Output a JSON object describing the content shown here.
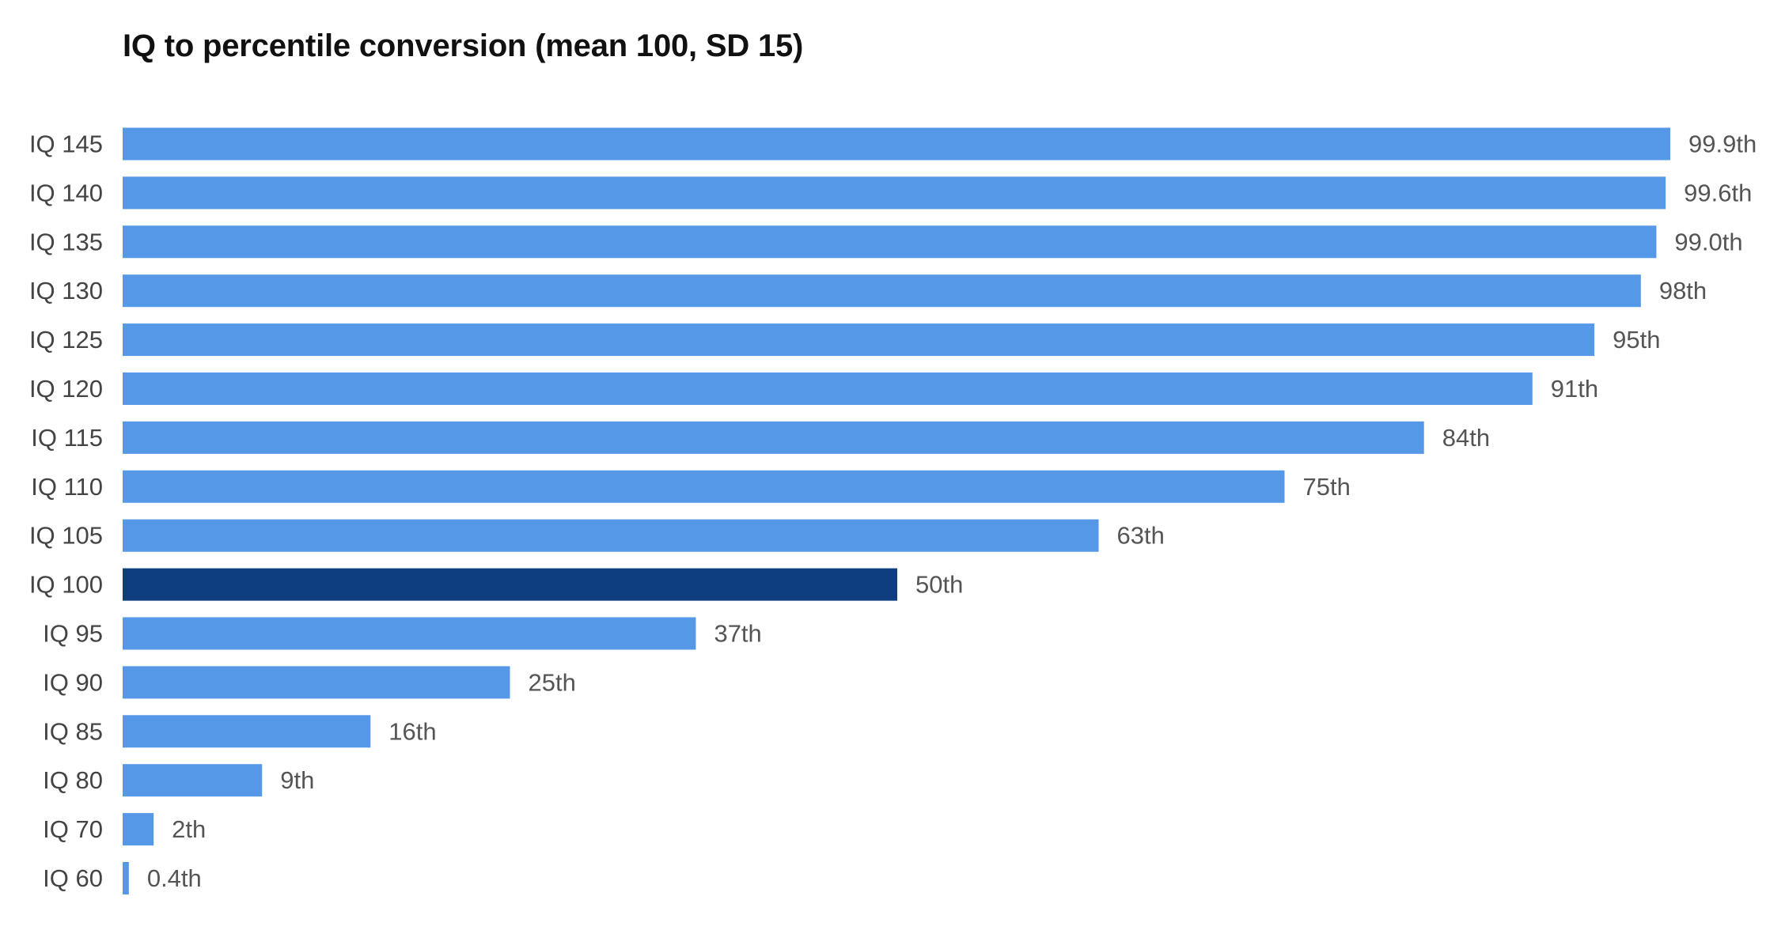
{
  "chart_data": {
    "type": "bar",
    "orientation": "horizontal",
    "title": "IQ to percentile conversion (mean 100, SD 15)",
    "xlabel": "",
    "ylabel": "",
    "xlim": [
      0,
      100
    ],
    "grid": false,
    "legend": "none",
    "categories": [
      "IQ 145",
      "IQ 140",
      "IQ 135",
      "IQ 130",
      "IQ 125",
      "IQ 120",
      "IQ 115",
      "IQ 110",
      "IQ 105",
      "IQ 100",
      "IQ 95",
      "IQ 90",
      "IQ 85",
      "IQ 80",
      "IQ 70",
      "IQ 60"
    ],
    "values": [
      99.9,
      99.6,
      99.0,
      98,
      95,
      91,
      84,
      75,
      63,
      50,
      37,
      25,
      16,
      9,
      2,
      0.4
    ],
    "value_labels": [
      "99.9th",
      "99.6th",
      "99.0th",
      "98th",
      "95th",
      "91th",
      "84th",
      "75th",
      "63th",
      "50th",
      "37th",
      "25th",
      "16th",
      "9th",
      "2th",
      "0.4th"
    ],
    "highlight_category": "IQ 100",
    "colors": {
      "bar": "#5598E7",
      "highlight": "#0F3E7F",
      "category_text": "#444444",
      "value_text": "#555555"
    }
  }
}
